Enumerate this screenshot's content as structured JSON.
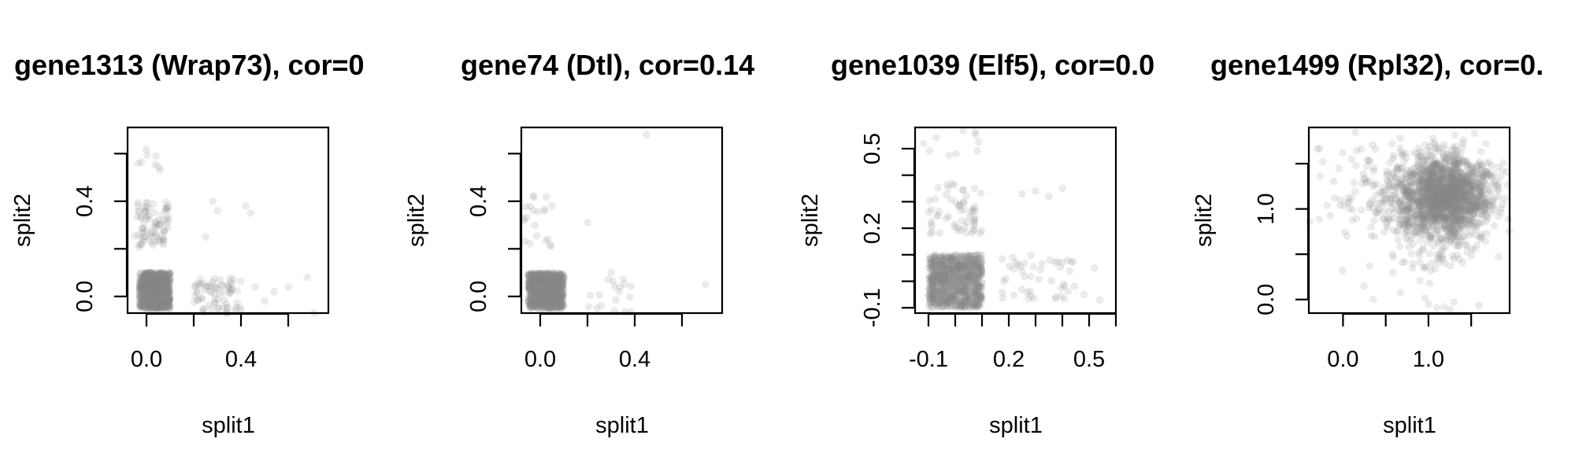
{
  "chart_data": [
    {
      "type": "scatter",
      "title": "gene1313 (Wrap73), cor=0",
      "xlabel": "split1",
      "ylabel": "split2",
      "xlim": [
        -0.08,
        0.77
      ],
      "ylim": [
        -0.07,
        0.71
      ],
      "x_ticks": [
        0,
        0.2,
        0.4,
        0.6
      ],
      "x_tick_labels": [
        "0.0",
        "",
        "0.4",
        ""
      ],
      "y_ticks": [
        0,
        0.2,
        0.4,
        0.6
      ],
      "y_tick_labels": [
        "0.0",
        "",
        "0.4",
        ""
      ],
      "point_color": "#888888",
      "clusters": [
        {
          "x": [
            -0.03,
            0.1
          ],
          "y": [
            -0.05,
            0.1
          ],
          "n": 900
        },
        {
          "x": [
            -0.05,
            0.1
          ],
          "y": [
            0.2,
            0.4
          ],
          "n": 80
        },
        {
          "x": [
            0.2,
            0.4
          ],
          "y": [
            -0.07,
            0.08
          ],
          "n": 70
        },
        {
          "x": [
            -0.05,
            0.07
          ],
          "y": [
            0.5,
            0.66
          ],
          "n": 8
        }
      ],
      "points": [
        [
          0.42,
          0.38
        ],
        [
          0.44,
          0.35
        ],
        [
          0.28,
          0.4
        ],
        [
          0.3,
          0.36
        ],
        [
          0.25,
          0.25
        ],
        [
          0.54,
          0.02
        ],
        [
          0.5,
          -0.02
        ],
        [
          0.68,
          0.08
        ],
        [
          0.71,
          -0.07
        ],
        [
          0.46,
          0.04
        ],
        [
          0.6,
          0.04
        ]
      ]
    },
    {
      "type": "scatter",
      "title": "gene74 (Dtl), cor=0.14",
      "xlabel": "split1",
      "ylabel": "split2",
      "xlim": [
        -0.08,
        0.77
      ],
      "ylim": [
        -0.07,
        0.71
      ],
      "x_ticks": [
        0,
        0.2,
        0.4,
        0.6
      ],
      "x_tick_labels": [
        "0.0",
        "",
        "0.4",
        ""
      ],
      "y_ticks": [
        0,
        0.2,
        0.4,
        0.6
      ],
      "y_tick_labels": [
        "0.0",
        "",
        "0.4",
        ""
      ],
      "point_color": "#888888",
      "clusters": [
        {
          "x": [
            -0.05,
            0.1
          ],
          "y": [
            -0.05,
            0.1
          ],
          "n": 900
        },
        {
          "x": [
            -0.07,
            0.05
          ],
          "y": [
            0.2,
            0.43
          ],
          "n": 20
        },
        {
          "x": [
            0.2,
            0.4
          ],
          "y": [
            -0.07,
            0.08
          ],
          "n": 18
        }
      ],
      "points": [
        [
          0.45,
          0.68
        ],
        [
          0.2,
          0.31
        ],
        [
          0.7,
          0.05
        ],
        [
          0.05,
          0.38
        ],
        [
          0.3,
          0.1
        ]
      ]
    },
    {
      "type": "scatter",
      "title": "gene1039 (Elf5), cor=0.0",
      "xlabel": "split1",
      "ylabel": "split2",
      "xlim": [
        -0.15,
        0.6
      ],
      "ylim": [
        -0.12,
        0.58
      ],
      "x_ticks": [
        -0.1,
        0,
        0.1,
        0.2,
        0.3,
        0.4,
        0.5,
        0.6
      ],
      "x_tick_labels": [
        "-0.1",
        "",
        "",
        "0.2",
        "",
        "",
        "0.5",
        ""
      ],
      "y_ticks": [
        -0.1,
        0,
        0.1,
        0.2,
        0.3,
        0.4,
        0.5
      ],
      "y_tick_labels": [
        "-0.1",
        "",
        "",
        "0.2",
        "",
        "",
        "0.5"
      ],
      "point_color": "#888888",
      "clusters": [
        {
          "x": [
            -0.1,
            0.1
          ],
          "y": [
            -0.1,
            0.1
          ],
          "n": 900
        },
        {
          "x": [
            -0.1,
            0.1
          ],
          "y": [
            0.17,
            0.37
          ],
          "n": 60
        },
        {
          "x": [
            0.17,
            0.45
          ],
          "y": [
            -0.07,
            0.1
          ],
          "n": 45
        },
        {
          "x": [
            -0.12,
            0.1
          ],
          "y": [
            0.45,
            0.58
          ],
          "n": 10
        }
      ],
      "points": [
        [
          0.25,
          0.33
        ],
        [
          0.3,
          0.34
        ],
        [
          0.35,
          0.32
        ],
        [
          0.4,
          0.35
        ],
        [
          0.52,
          0.05
        ],
        [
          0.54,
          -0.07
        ],
        [
          0.48,
          -0.05
        ],
        [
          0.42,
          0.08
        ]
      ]
    },
    {
      "type": "scatter",
      "title": "gene1499 (Rpl32), cor=0.",
      "xlabel": "split1",
      "ylabel": "split2",
      "xlim": [
        -0.4,
        1.95
      ],
      "ylim": [
        -0.15,
        1.9
      ],
      "x_ticks": [
        0,
        0.5,
        1,
        1.5
      ],
      "x_tick_labels": [
        "0.0",
        "",
        "1.0",
        ""
      ],
      "y_ticks": [
        0,
        0.5,
        1,
        1.5
      ],
      "y_tick_labels": [
        "0.0",
        "",
        "1.0",
        ""
      ],
      "point_color": "#888888",
      "clusters": [
        {
          "gaussian": true,
          "cx": 1.2,
          "cy": 1.15,
          "sx": 0.26,
          "sy": 0.22,
          "n": 1600
        },
        {
          "gaussian": true,
          "cx": 0.7,
          "cy": 1.15,
          "sx": 0.42,
          "sy": 0.3,
          "n": 250
        },
        {
          "gaussian": true,
          "cx": 1.1,
          "cy": 0.6,
          "sx": 0.25,
          "sy": 0.28,
          "n": 90
        }
      ],
      "points": [
        [
          0.05,
          0.7
        ],
        [
          0.35,
          0.0
        ],
        [
          1.0,
          -0.05
        ],
        [
          1.3,
          -0.03
        ],
        [
          -0.05,
          1.45
        ],
        [
          0.1,
          1.55
        ]
      ]
    }
  ]
}
